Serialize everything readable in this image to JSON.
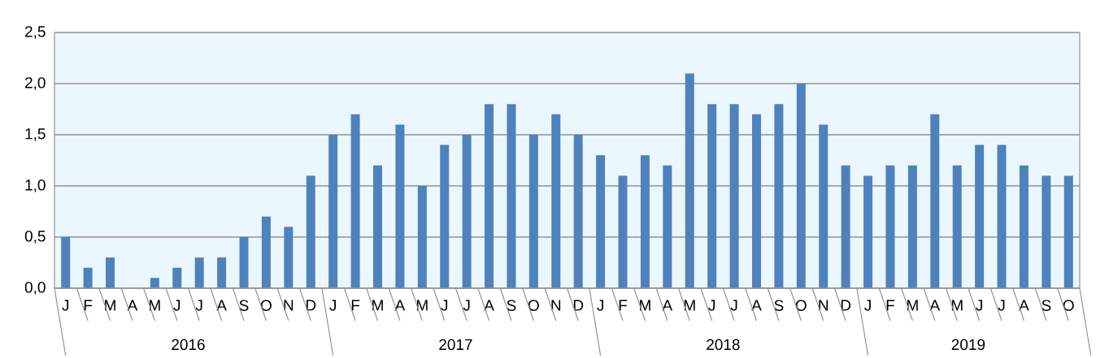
{
  "chart_data": {
    "type": "bar",
    "categories": [
      "J",
      "F",
      "M",
      "A",
      "M",
      "J",
      "J",
      "A",
      "S",
      "O",
      "N",
      "D",
      "J",
      "F",
      "M",
      "A",
      "M",
      "J",
      "J",
      "A",
      "S",
      "O",
      "N",
      "D",
      "J",
      "F",
      "M",
      "A",
      "M",
      "J",
      "J",
      "A",
      "S",
      "O",
      "N",
      "D",
      "J",
      "F",
      "M",
      "A",
      "M",
      "J",
      "J",
      "A",
      "S",
      "O"
    ],
    "values": [
      0.5,
      0.2,
      0.3,
      0,
      0.1,
      0.2,
      0.3,
      0.3,
      0.5,
      0.7,
      0.6,
      1.1,
      1.5,
      1.7,
      1.2,
      1.6,
      1.0,
      1.4,
      1.5,
      1.8,
      1.8,
      1.5,
      1.7,
      1.5,
      1.3,
      1.1,
      1.3,
      1.2,
      2.1,
      1.8,
      1.8,
      1.7,
      1.8,
      2.0,
      1.6,
      1.2,
      1.1,
      1.2,
      1.2,
      1.7,
      1.2,
      1.4,
      1.4,
      1.2,
      1.1,
      1.1
    ],
    "color": "#4f81bd",
    "ylim": [
      0,
      2.5
    ],
    "yticks": [
      {
        "value": 0,
        "label": "0,0"
      },
      {
        "value": 0.5,
        "label": "0,5"
      },
      {
        "value": 1,
        "label": "1,0"
      },
      {
        "value": 1.5,
        "label": "1,5"
      },
      {
        "value": 2,
        "label": "2,0"
      },
      {
        "value": 2.5,
        "label": "2,5"
      }
    ],
    "grid": "y",
    "annotations": [
      "2016",
      "2017",
      "2018",
      "2019"
    ]
  }
}
